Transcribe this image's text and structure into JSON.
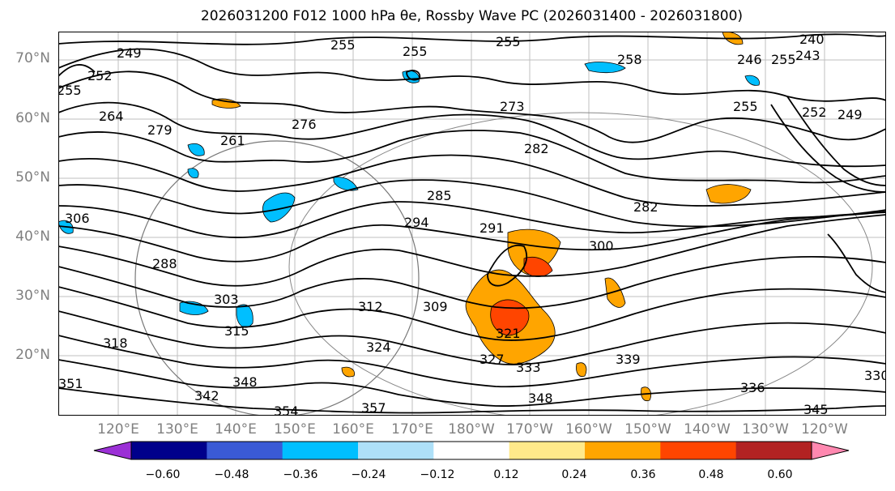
{
  "title": "2026031200 F012 1000 hPa θe, Rossby Wave PC (2026031400 - 2026031800)",
  "lat_labels": [
    "70°N",
    "60°N",
    "50°N",
    "40°N",
    "30°N",
    "20°N"
  ],
  "lon_labels": [
    "120°E",
    "130°E",
    "140°E",
    "150°E",
    "160°E",
    "170°E",
    "180°W",
    "170°W",
    "160°W",
    "150°W",
    "140°W",
    "130°W",
    "120°W"
  ],
  "contour_labels": [
    "255",
    "255",
    "255",
    "249",
    "252",
    "255",
    "264",
    "279",
    "261",
    "276",
    "258",
    "255",
    "273",
    "282",
    "243",
    "240",
    "246",
    "255",
    "252",
    "249",
    "285",
    "294",
    "291",
    "282",
    "300",
    "288",
    "303",
    "306",
    "312",
    "309",
    "315",
    "318",
    "324",
    "321",
    "327",
    "333",
    "339",
    "348",
    "342",
    "348",
    "354",
    "357",
    "336",
    "345",
    "330",
    "351"
  ],
  "colorbar": {
    "ticks": [
      "−0.60",
      "−0.48",
      "−0.36",
      "−0.24",
      "−0.12",
      "0.12",
      "0.24",
      "0.36",
      "0.48",
      "0.60"
    ],
    "colors": [
      "#9b30d6",
      "#00008b",
      "#3a5ad6",
      "#00bfff",
      "#aee0f8",
      "#ffffff",
      "#ffe98a",
      "#ffa500",
      "#ff4500",
      "#b22222",
      "#ff88b0"
    ]
  }
}
